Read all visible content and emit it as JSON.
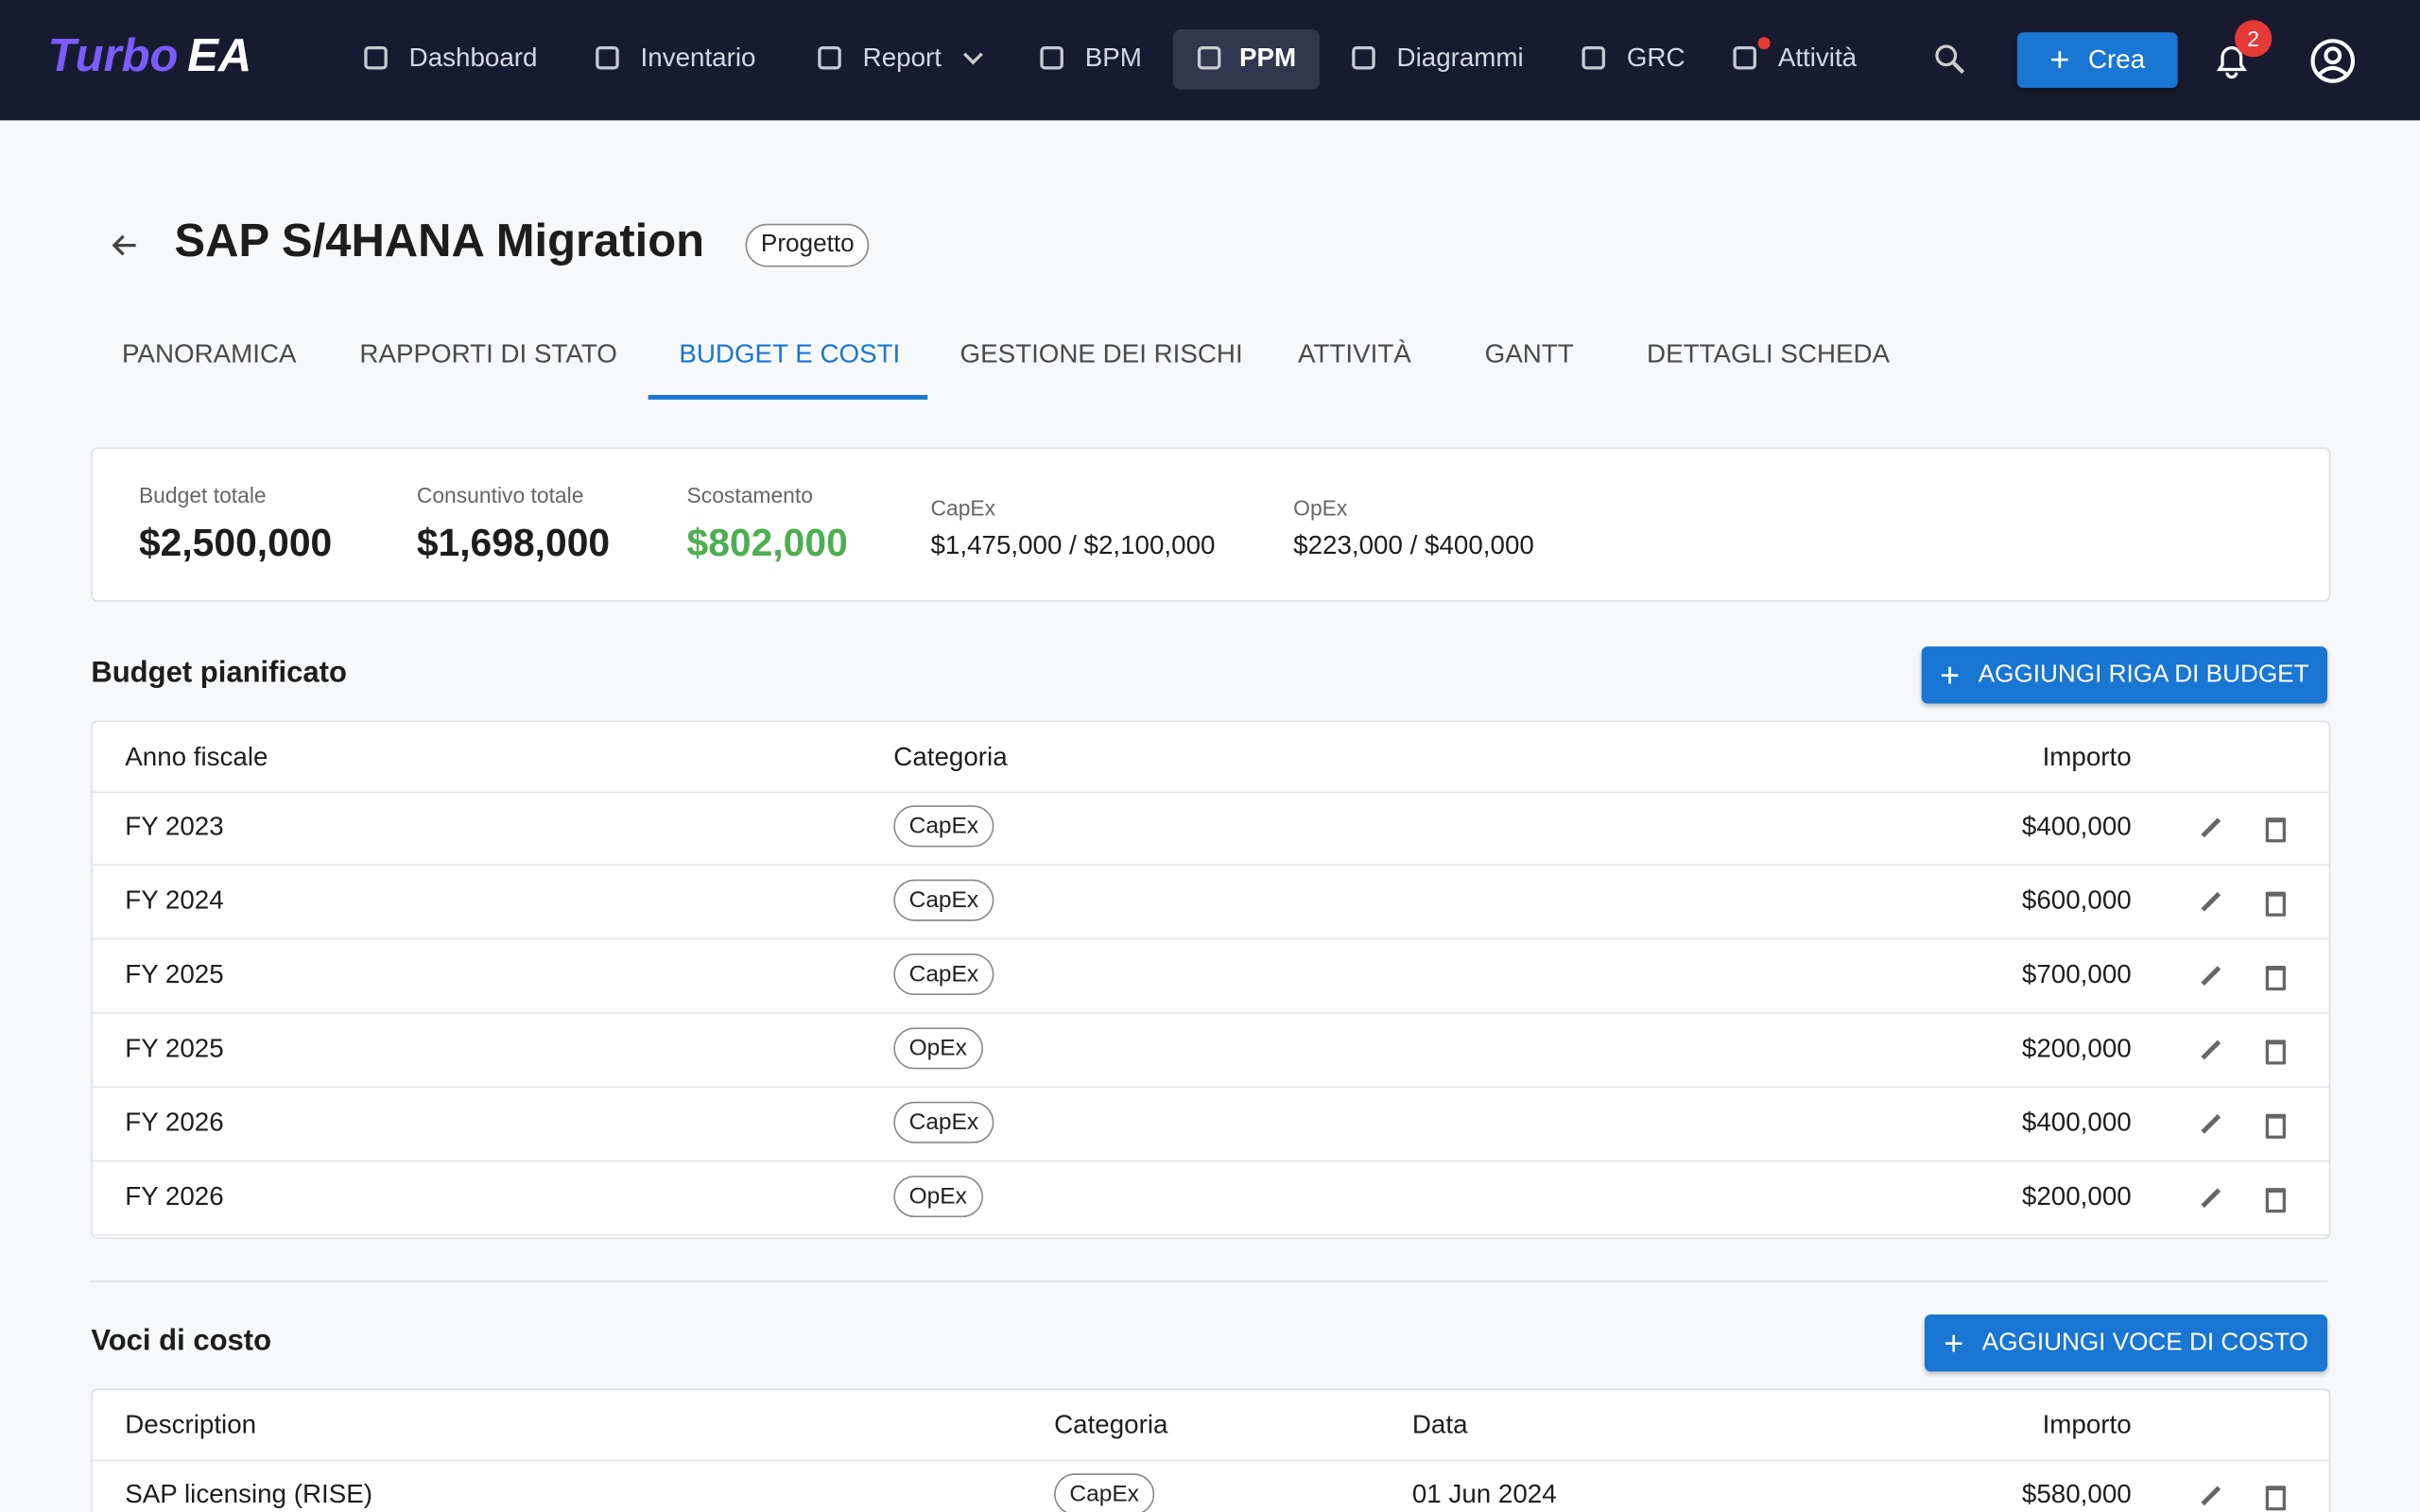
{
  "nav": {
    "logo_a": "Turbo",
    "logo_b": "EA",
    "items": [
      "Dashboard",
      "Inventario",
      "Report",
      "BPM",
      "PPM",
      "Diagrammi",
      "GRC",
      "Attività"
    ],
    "create": "Crea",
    "notifications": "2"
  },
  "header": {
    "title": "SAP S/4HANA Migration",
    "tag": "Progetto"
  },
  "tabs": [
    "PANORAMICA",
    "RAPPORTI DI STATO",
    "BUDGET E COSTI",
    "GESTIONE DEI RISCHI",
    "ATTIVITÀ",
    "GANTT",
    "DETTAGLI SCHEDA"
  ],
  "summary": [
    {
      "label": "Budget totale",
      "value": "$2,500,000"
    },
    {
      "label": "Consuntivo totale",
      "value": "$1,698,000"
    },
    {
      "label": "Scostamento",
      "value": "$802,000"
    },
    {
      "label": "CapEx",
      "value": "$1,475,000 / $2,100,000"
    },
    {
      "label": "OpEx",
      "value": "$223,000 / $400,000"
    }
  ],
  "budget": {
    "title": "Budget pianificato",
    "button": "AGGIUNGI RIGA DI BUDGET",
    "columns": [
      "Anno fiscale",
      "Categoria",
      "Importo"
    ],
    "rows": [
      [
        "FY 2023",
        "CapEx",
        "$400,000"
      ],
      [
        "FY 2024",
        "CapEx",
        "$600,000"
      ],
      [
        "FY 2025",
        "CapEx",
        "$700,000"
      ],
      [
        "FY 2025",
        "OpEx",
        "$200,000"
      ],
      [
        "FY 2026",
        "CapEx",
        "$400,000"
      ],
      [
        "FY 2026",
        "OpEx",
        "$200,000"
      ]
    ]
  },
  "costs": {
    "title": "Voci di costo",
    "button": "AGGIUNGI VOCE DI COSTO",
    "columns": [
      "Description",
      "Categoria",
      "Data",
      "Importo"
    ],
    "rows": [
      [
        "SAP licensing (RISE)",
        "CapEx",
        "01 Jun 2024",
        "$580,000"
      ]
    ]
  }
}
